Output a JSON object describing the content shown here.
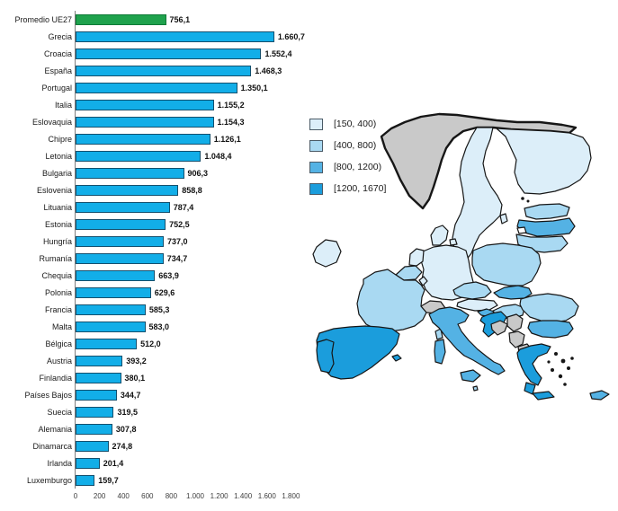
{
  "chart_data": {
    "type": "bar",
    "orientation": "horizontal",
    "title": "",
    "xlabel": "",
    "ylabel": "",
    "xlim": [
      0,
      1800
    ],
    "grid": false,
    "highlight_index": 0,
    "highlight_color": "#1FA24D",
    "bar_color": "#12AEE8",
    "categories": [
      "Promedio UE27",
      "Grecia",
      "Croacia",
      "España",
      "Portugal",
      "Italia",
      "Eslovaquia",
      "Chipre",
      "Letonia",
      "Bulgaria",
      "Eslovenia",
      "Lituania",
      "Estonia",
      "Hungría",
      "Rumanía",
      "Chequia",
      "Polonia",
      "Francia",
      "Malta",
      "Bélgica",
      "Austria",
      "Finlandia",
      "Países Bajos",
      "Suecia",
      "Alemania",
      "Dinamarca",
      "Irlanda",
      "Luxemburgo"
    ],
    "values": [
      756.1,
      1660.7,
      1552.4,
      1468.3,
      1350.1,
      1155.2,
      1154.3,
      1126.1,
      1048.4,
      906.3,
      858.8,
      787.4,
      752.5,
      737.0,
      734.7,
      663.9,
      629.6,
      585.3,
      583.0,
      512.0,
      393.2,
      380.1,
      344.7,
      319.5,
      307.8,
      274.8,
      201.4,
      159.7
    ],
    "value_labels": [
      "756,1",
      "1.660,7",
      "1.552,4",
      "1.468,3",
      "1.350,1",
      "1.155,2",
      "1.154,3",
      "1.126,1",
      "1.048,4",
      "906,3",
      "858,8",
      "787,4",
      "752,5",
      "737,0",
      "734,7",
      "663,9",
      "629,6",
      "585,3",
      "583,0",
      "512,0",
      "393,2",
      "380,1",
      "344,7",
      "319,5",
      "307,8",
      "274,8",
      "201,4",
      "159,7"
    ],
    "x_ticks": [
      0,
      200,
      400,
      600,
      800,
      1000,
      1200,
      1400,
      1600,
      1800
    ],
    "x_tick_labels": [
      "0",
      "200",
      "400",
      "600",
      "800",
      "1.000",
      "1.200",
      "1.400",
      "1.600",
      "1.800"
    ]
  },
  "legend": {
    "items": [
      {
        "label": "[150, 400)",
        "color": "#DCEEF9"
      },
      {
        "label": "[400, 800)",
        "color": "#A9D9F2"
      },
      {
        "label": "[800, 1200)",
        "color": "#54B2E4"
      },
      {
        "label": "[1200, 1670]",
        "color": "#1B9DDC"
      }
    ]
  },
  "map": {
    "class_colors": {
      "c1": "#DCEEF9",
      "c2": "#A9D9F2",
      "c3": "#54B2E4",
      "c4": "#1B9DDC",
      "nodata": "#C9C9C9",
      "white": "#FFFFFF"
    },
    "countries": {
      "norway": "nodata",
      "switzerland": "nodata",
      "bosnia": "nodata",
      "serbia": "nodata",
      "montenegro-albania": "nodata",
      "north-macedonia": "nodata",
      "kaliningrad": "white",
      "sweden": "c1",
      "finland": "c1",
      "denmark": "c1",
      "ireland": "c1",
      "netherlands": "c1",
      "germany": "c1",
      "austria": "c1",
      "luxembourg": "c1",
      "gotland": "c1",
      "estonia": "c2",
      "lithuania": "c2",
      "poland": "c2",
      "czechia": "c2",
      "hungary": "c2",
      "romania": "c2",
      "france": "c2",
      "belgium": "c2",
      "corsica": "c2",
      "malta": "c2",
      "latvia": "c3",
      "slovakia": "c3",
      "italy": "c3",
      "sicily": "c3",
      "sardinia": "c3",
      "bulgaria": "c3",
      "slovenia": "c3",
      "cyprus": "c3",
      "spain": "c4",
      "portugal": "c4",
      "croatia": "c4",
      "greece": "c4",
      "peloponnese": "c4",
      "crete": "c4",
      "balearics": "c4"
    }
  }
}
